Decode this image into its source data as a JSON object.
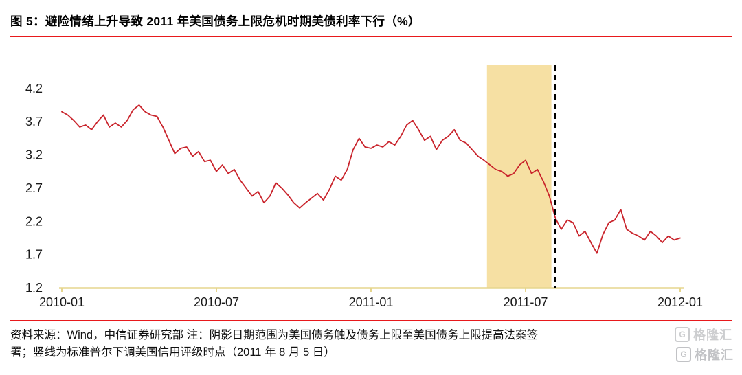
{
  "header": {
    "title": "图 5：避险情绪上升导致 2011 年美国债务上限危机时期美债利率下行（%）"
  },
  "footer": {
    "note_line1": "资料来源：Wind，中信证券研究部  注：阴影日期范围为美国债务触及债务上限至美国债务上限提高法案签",
    "note_line2": "署；竖线为标准普尔下调美国信用评级时点（2011 年 8 月 5 日）",
    "watermark": {
      "logo_letter": "G",
      "text": "格隆汇"
    }
  },
  "chart_data": {
    "type": "line",
    "title": "避险情绪上升导致 2011 年美国债务上限危机时期美债利率下行（%）",
    "xlabel": "",
    "ylabel": "",
    "x_domain": [
      "2010-01",
      "2012-01"
    ],
    "ylim": [
      1.2,
      4.55
    ],
    "grid": false,
    "legend": "none",
    "axis_color": "#e6d58e",
    "y_ticks": [
      1.2,
      1.7,
      2.2,
      2.7,
      3.2,
      3.7,
      4.2
    ],
    "x_ticks": [
      {
        "label": "2010-01",
        "m": 0
      },
      {
        "label": "2010-07",
        "m": 6
      },
      {
        "label": "2011-01",
        "m": 12
      },
      {
        "label": "2011-07",
        "m": 18
      },
      {
        "label": "2012-01",
        "m": 24
      }
    ],
    "shaded_region": {
      "start_m": 16.5,
      "end_m": 19.0,
      "start_label": "2011-05 中旬",
      "end_label": "2011-08 初",
      "color": "#f6e0a3",
      "meaning": "阴影日期范围为美国债务触及债务上限至美国债务上限提高"
    },
    "vline": {
      "m": 19.15,
      "date_label": "2011 年 8 月 5 日",
      "style": "dashed",
      "color": "#000000",
      "meaning": "竖线为标准普尔下调美国信用评级时点"
    },
    "series": [
      {
        "name": "美债利率（%）",
        "color": "#c9232b",
        "cadence": "weekly",
        "values": [
          3.85,
          3.8,
          3.72,
          3.62,
          3.65,
          3.58,
          3.7,
          3.8,
          3.62,
          3.68,
          3.62,
          3.72,
          3.88,
          3.95,
          3.85,
          3.8,
          3.78,
          3.62,
          3.42,
          3.22,
          3.3,
          3.32,
          3.18,
          3.25,
          3.1,
          3.12,
          2.95,
          3.05,
          2.92,
          2.98,
          2.82,
          2.7,
          2.58,
          2.65,
          2.48,
          2.58,
          2.78,
          2.7,
          2.6,
          2.48,
          2.4,
          2.48,
          2.55,
          2.62,
          2.52,
          2.68,
          2.88,
          2.82,
          2.98,
          3.28,
          3.45,
          3.32,
          3.3,
          3.35,
          3.32,
          3.4,
          3.35,
          3.48,
          3.65,
          3.72,
          3.58,
          3.42,
          3.48,
          3.28,
          3.42,
          3.48,
          3.58,
          3.42,
          3.38,
          3.28,
          3.18,
          3.12,
          3.05,
          2.98,
          2.95,
          2.88,
          2.92,
          3.05,
          3.12,
          2.92,
          2.98,
          2.8,
          2.58,
          2.25,
          2.08,
          2.22,
          2.18,
          1.98,
          2.05,
          1.88,
          1.72,
          2.0,
          2.18,
          2.22,
          2.38,
          2.08,
          2.02,
          1.98,
          1.92,
          2.05,
          1.98,
          1.88,
          1.98,
          1.92,
          1.95
        ]
      }
    ]
  }
}
